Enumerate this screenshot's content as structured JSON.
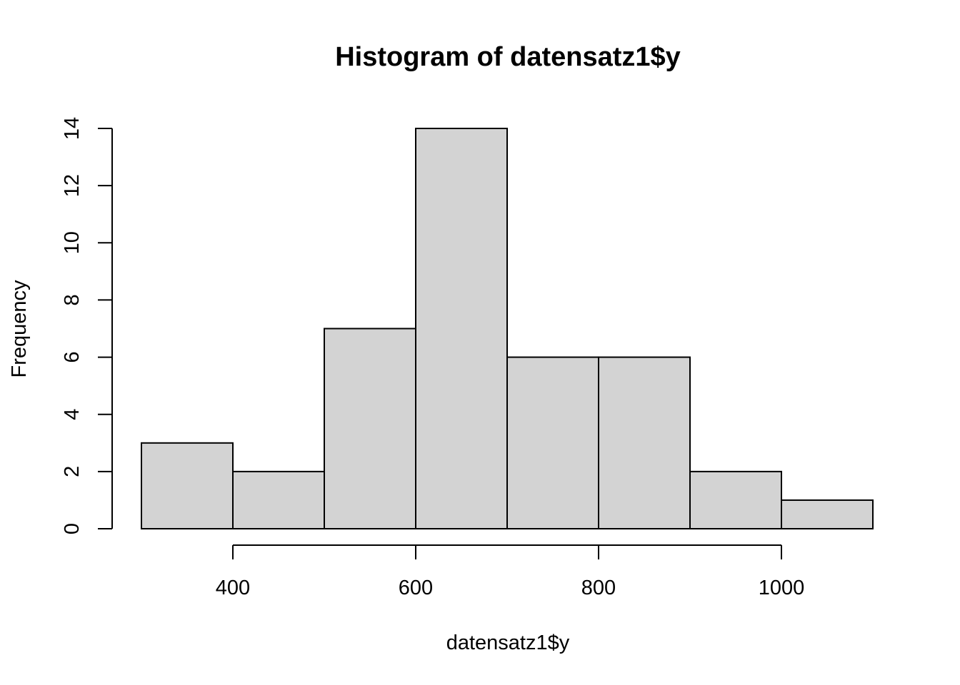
{
  "chart_data": {
    "type": "bar",
    "subtype": "histogram",
    "title": "Histogram of datensatz1$y",
    "xlabel": "datensatz1$y",
    "ylabel": "Frequency",
    "bins": [
      {
        "from": 300,
        "to": 400,
        "count": 3
      },
      {
        "from": 400,
        "to": 500,
        "count": 2
      },
      {
        "from": 500,
        "to": 600,
        "count": 7
      },
      {
        "from": 600,
        "to": 700,
        "count": 14
      },
      {
        "from": 700,
        "to": 800,
        "count": 6
      },
      {
        "from": 800,
        "to": 900,
        "count": 6
      },
      {
        "from": 900,
        "to": 1000,
        "count": 2
      },
      {
        "from": 1000,
        "to": 1100,
        "count": 1
      }
    ],
    "xlim": [
      300,
      1100
    ],
    "ylim": [
      0,
      14
    ],
    "x_ticks": [
      400,
      600,
      800,
      1000
    ],
    "x_tick_labels": [
      "400",
      "600",
      "800",
      "1000"
    ],
    "y_ticks": [
      0,
      2,
      4,
      6,
      8,
      10,
      12,
      14
    ],
    "y_tick_labels": [
      "0",
      "2",
      "4",
      "6",
      "8",
      "10",
      "12",
      "14"
    ],
    "bar_color": "#d3d3d3",
    "edge_color": "#000000",
    "grid": false
  }
}
